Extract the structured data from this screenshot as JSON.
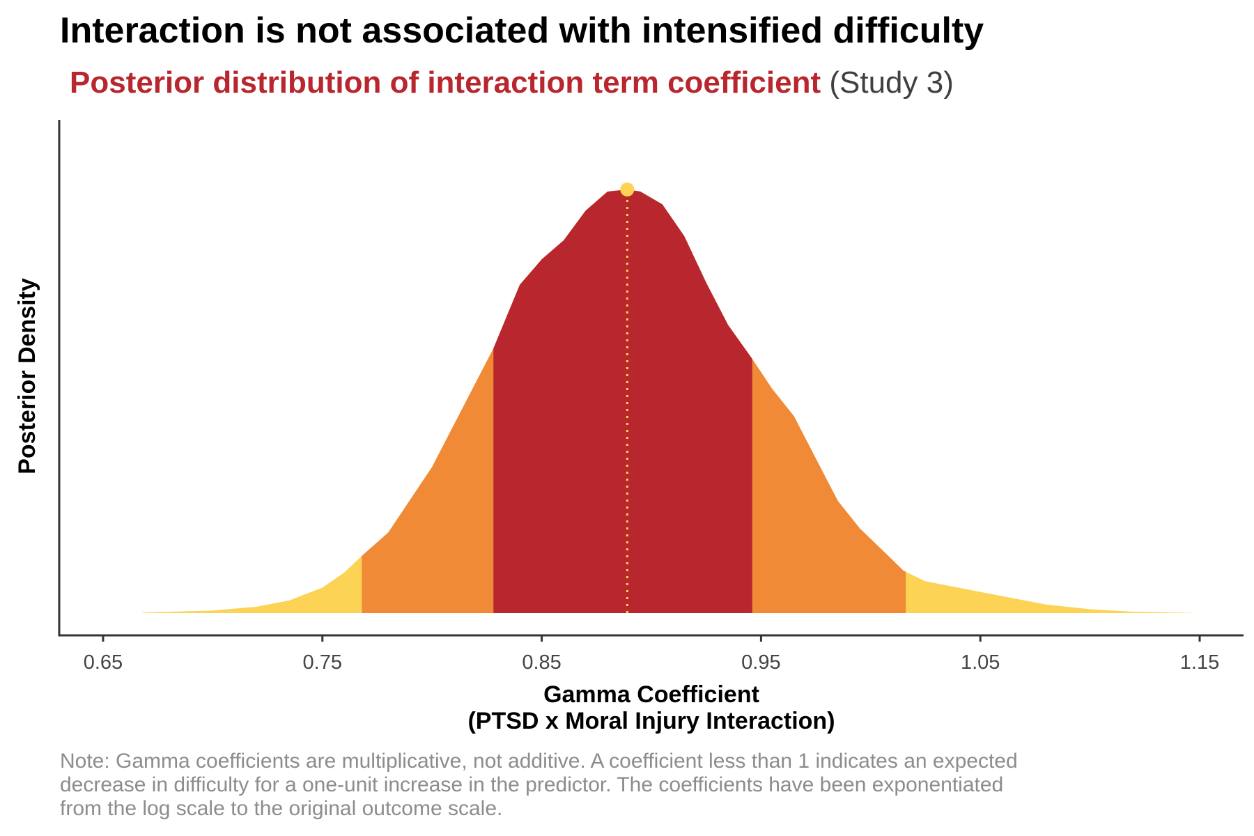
{
  "chart_data": {
    "type": "area",
    "title": "Interaction is not associated with intensified difficulty",
    "subtitle_highlight": "Posterior distribution of interaction term coefficient",
    "subtitle_rest": "(Study 3)",
    "xlabel_line1": "Gamma Coefficient",
    "xlabel_line2": "(PTSD x Moral Injury Interaction)",
    "ylabel": "Posterior Density",
    "xlim": [
      0.63,
      1.17
    ],
    "ylim": [
      0,
      1.05
    ],
    "xticks": [
      0.65,
      0.75,
      0.85,
      0.95,
      1.05,
      1.15
    ],
    "xtick_labels": [
      "0.65",
      "0.75",
      "0.85",
      "0.95",
      "1.05",
      "1.15"
    ],
    "grid": false,
    "colors": {
      "inner": "#b8262e",
      "middle": "#f08a37",
      "outer": "#fdd355",
      "median_line": "#fdd355",
      "axis": "#333333"
    },
    "series": [
      {
        "x": [
          0.668,
          0.7,
          0.72,
          0.735,
          0.75,
          0.76,
          0.768,
          0.78,
          0.8,
          0.815,
          0.828,
          0.84,
          0.85,
          0.86,
          0.87,
          0.88,
          0.889,
          0.895,
          0.905,
          0.915,
          0.925,
          0.935,
          0.946,
          0.955,
          0.965,
          0.975,
          0.985,
          0.995,
          1.005,
          1.015,
          1.025,
          1.04,
          1.06,
          1.08,
          1.1,
          1.12,
          1.15
        ],
        "y": [
          0.001,
          0.006,
          0.015,
          0.03,
          0.06,
          0.096,
          0.135,
          0.19,
          0.345,
          0.495,
          0.625,
          0.775,
          0.835,
          0.88,
          0.95,
          0.995,
          1.0,
          0.995,
          0.965,
          0.89,
          0.78,
          0.68,
          0.6,
          0.53,
          0.465,
          0.365,
          0.265,
          0.2,
          0.15,
          0.1,
          0.075,
          0.06,
          0.04,
          0.02,
          0.009,
          0.003,
          0.0
        ]
      }
    ],
    "intervals": {
      "outer": [
        0.668,
        1.15
      ],
      "middle": [
        0.768,
        1.016
      ],
      "inner": [
        0.828,
        0.946
      ]
    },
    "median": 0.889,
    "note_lines": [
      "Note: Gamma coefficients are multiplicative, not additive. A coefficient less than 1 indicates an expected",
      "decrease in difficulty for a one-unit increase in the predictor. The coefficients have been exponentiated",
      "from the log scale to the original outcome scale."
    ]
  }
}
